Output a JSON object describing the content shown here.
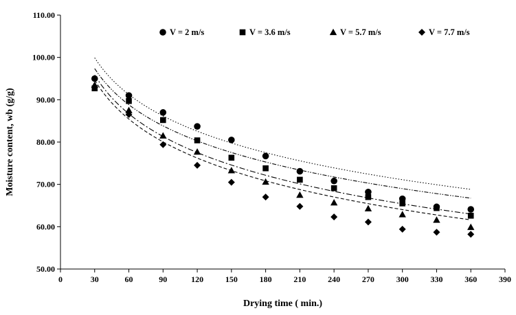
{
  "chart_data": {
    "type": "scatter",
    "title": "",
    "xlabel": "Drying time ( min.)",
    "ylabel": "Moisture content, wb (g/g)",
    "xlim": [
      0,
      390
    ],
    "ylim": [
      50,
      110
    ],
    "x_ticks": [
      0,
      30,
      60,
      90,
      120,
      150,
      180,
      210,
      240,
      270,
      300,
      330,
      360,
      390
    ],
    "y_ticks": [
      50,
      60,
      70,
      80,
      90,
      100,
      110
    ],
    "y_tick_labels": [
      "50.00",
      "60.00",
      "70.00",
      "80.00",
      "90.00",
      "100.00",
      "110.00"
    ],
    "grid": false,
    "legend_position": "top",
    "x": [
      30,
      60,
      90,
      120,
      150,
      180,
      210,
      240,
      270,
      300,
      330,
      360
    ],
    "series": [
      {
        "name": "V = 2 m/s",
        "marker": "circle",
        "line_style": "dotted",
        "values": [
          95.0,
          91.0,
          87.0,
          83.7,
          80.5,
          76.7,
          73.1,
          70.8,
          68.2,
          66.6,
          64.7,
          64.1
        ],
        "trend": [
          99.7,
          91.3,
          86.2,
          82.7,
          79.9,
          77.6,
          75.7,
          73.9,
          72.4,
          71.0,
          69.8,
          68.7
        ]
      },
      {
        "name": "V = 3.6 m/s",
        "marker": "square",
        "line_style": "dash-dot-dot",
        "values": [
          92.7,
          89.7,
          85.2,
          80.4,
          76.3,
          73.8,
          71.1,
          69.1,
          67.0,
          65.5,
          64.4,
          62.6
        ],
        "trend": [
          97.0,
          88.9,
          84.0,
          80.5,
          77.7,
          75.4,
          73.5,
          71.8,
          70.3,
          68.9,
          67.6,
          66.5
        ]
      },
      {
        "name": "V = 5.7 m/s",
        "marker": "triangle",
        "line_style": "dash-dot",
        "values": [
          93.5,
          87.5,
          81.5,
          77.7,
          73.3,
          70.6,
          67.5,
          65.7,
          64.3,
          62.9,
          61.6,
          59.9
        ],
        "trend": [
          95.8,
          86.7,
          81.3,
          77.5,
          74.6,
          72.2,
          70.2,
          68.4,
          66.8,
          65.4,
          64.1,
          62.9
        ]
      },
      {
        "name": "V = 7.7 m/s",
        "marker": "diamond",
        "line_style": "dashed",
        "values": [
          93.0,
          86.5,
          79.4,
          74.5,
          70.5,
          67.0,
          64.8,
          62.3,
          61.1,
          59.4,
          58.7,
          58.2
        ],
        "trend": [
          94.3,
          85.7,
          80.2,
          76.3,
          73.3,
          70.9,
          68.8,
          67.0,
          65.4,
          64.0,
          62.7,
          61.5
        ]
      }
    ]
  }
}
